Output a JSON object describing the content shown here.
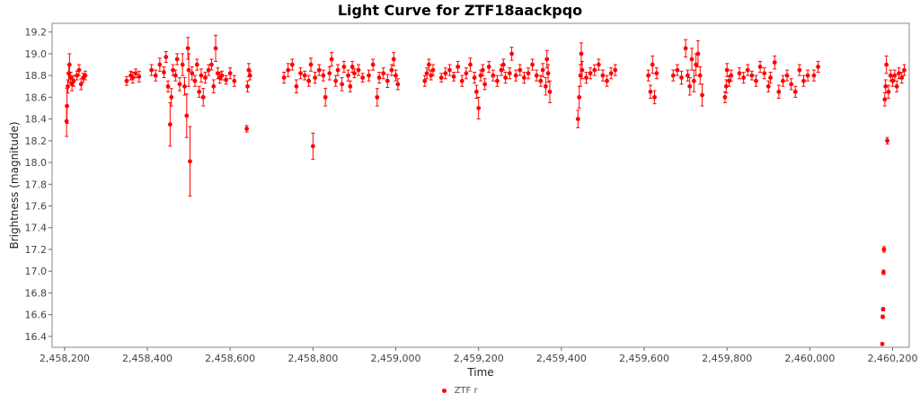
{
  "chart_data": {
    "type": "scatter",
    "title": "Light Curve for ZTF18aackpqo",
    "xlabel": "Time",
    "ylabel": "Brightness (magnitude)",
    "xlim": [
      2458170,
      2460240
    ],
    "ylim": [
      19.28,
      16.3
    ],
    "y_inverted": true,
    "grid": false,
    "legend_position": "bottom-center",
    "x_ticks": [
      2458200,
      2458400,
      2458600,
      2458800,
      2459000,
      2459200,
      2459400,
      2459600,
      2459800,
      2460000,
      2460200
    ],
    "x_tick_labels": [
      "2,458,200",
      "2,458,400",
      "2,458,600",
      "2,458,800",
      "2,459,000",
      "2,459,200",
      "2,459,400",
      "2,459,600",
      "2,459,800",
      "2,460,000",
      "2,460,200"
    ],
    "y_ticks": [
      16.4,
      16.6,
      16.8,
      17.0,
      17.2,
      17.4,
      17.6,
      17.8,
      18.0,
      18.2,
      18.4,
      18.6,
      18.8,
      19.0,
      19.2
    ],
    "y_tick_labels": [
      "16.4",
      "16.6",
      "16.8",
      "17.0",
      "17.2",
      "17.4",
      "17.6",
      "17.8",
      "18.0",
      "18.2",
      "18.4",
      "18.6",
      "18.8",
      "19.0",
      "19.2"
    ],
    "series": [
      {
        "name": "ZTF r",
        "color": "#ff0000",
        "points": [
          [
            2458205,
            18.38,
            0.14
          ],
          [
            2458206,
            18.52,
            0.16
          ],
          [
            2458208,
            18.7,
            0.06
          ],
          [
            2458210,
            18.82,
            0.08
          ],
          [
            2458212,
            18.9,
            0.1
          ],
          [
            2458215,
            18.78,
            0.05
          ],
          [
            2458218,
            18.72,
            0.06
          ],
          [
            2458222,
            18.75,
            0.05
          ],
          [
            2458230,
            18.8,
            0.04
          ],
          [
            2458235,
            18.85,
            0.05
          ],
          [
            2458240,
            18.72,
            0.05
          ],
          [
            2458245,
            18.78,
            0.04
          ],
          [
            2458250,
            18.8,
            0.04
          ],
          [
            2458350,
            18.75,
            0.04
          ],
          [
            2458360,
            18.8,
            0.04
          ],
          [
            2458365,
            18.78,
            0.05
          ],
          [
            2458372,
            18.82,
            0.04
          ],
          [
            2458380,
            18.79,
            0.05
          ],
          [
            2458410,
            18.85,
            0.05
          ],
          [
            2458420,
            18.8,
            0.05
          ],
          [
            2458430,
            18.9,
            0.06
          ],
          [
            2458440,
            18.83,
            0.05
          ],
          [
            2458445,
            18.97,
            0.05
          ],
          [
            2458450,
            18.7,
            0.05
          ],
          [
            2458455,
            18.35,
            0.2
          ],
          [
            2458458,
            18.6,
            0.08
          ],
          [
            2458462,
            18.85,
            0.05
          ],
          [
            2458468,
            18.8,
            0.05
          ],
          [
            2458472,
            18.95,
            0.05
          ],
          [
            2458478,
            18.72,
            0.06
          ],
          [
            2458485,
            18.9,
            0.1
          ],
          [
            2458490,
            18.7,
            0.08
          ],
          [
            2458495,
            18.43,
            0.2
          ],
          [
            2458498,
            19.05,
            0.1
          ],
          [
            2458500,
            18.85,
            0.15
          ],
          [
            2458503,
            18.01,
            0.32
          ],
          [
            2458508,
            18.82,
            0.06
          ],
          [
            2458515,
            18.75,
            0.05
          ],
          [
            2458520,
            18.9,
            0.05
          ],
          [
            2458525,
            18.65,
            0.05
          ],
          [
            2458530,
            18.8,
            0.06
          ],
          [
            2458535,
            18.6,
            0.08
          ],
          [
            2458540,
            18.78,
            0.05
          ],
          [
            2458548,
            18.85,
            0.05
          ],
          [
            2458555,
            18.9,
            0.05
          ],
          [
            2458560,
            18.7,
            0.06
          ],
          [
            2458565,
            19.05,
            0.12
          ],
          [
            2458570,
            18.82,
            0.05
          ],
          [
            2458575,
            18.78,
            0.05
          ],
          [
            2458580,
            18.8,
            0.04
          ],
          [
            2458590,
            18.76,
            0.04
          ],
          [
            2458600,
            18.82,
            0.05
          ],
          [
            2458610,
            18.75,
            0.05
          ],
          [
            2458640,
            18.31,
            0.03
          ],
          [
            2458642,
            18.7,
            0.05
          ],
          [
            2458645,
            18.85,
            0.06
          ],
          [
            2458648,
            18.8,
            0.04
          ],
          [
            2458730,
            18.78,
            0.05
          ],
          [
            2458740,
            18.85,
            0.06
          ],
          [
            2458750,
            18.9,
            0.05
          ],
          [
            2458760,
            18.7,
            0.06
          ],
          [
            2458770,
            18.82,
            0.05
          ],
          [
            2458780,
            18.8,
            0.04
          ],
          [
            2458790,
            18.75,
            0.05
          ],
          [
            2458795,
            18.9,
            0.06
          ],
          [
            2458800,
            18.15,
            0.12
          ],
          [
            2458805,
            18.78,
            0.05
          ],
          [
            2458815,
            18.85,
            0.05
          ],
          [
            2458825,
            18.8,
            0.05
          ],
          [
            2458830,
            18.6,
            0.08
          ],
          [
            2458840,
            18.82,
            0.06
          ],
          [
            2458845,
            18.95,
            0.06
          ],
          [
            2458855,
            18.75,
            0.05
          ],
          [
            2458860,
            18.85,
            0.05
          ],
          [
            2458870,
            18.72,
            0.06
          ],
          [
            2458875,
            18.88,
            0.05
          ],
          [
            2458885,
            18.8,
            0.05
          ],
          [
            2458890,
            18.7,
            0.05
          ],
          [
            2458895,
            18.88,
            0.05
          ],
          [
            2458900,
            18.82,
            0.04
          ],
          [
            2458910,
            18.85,
            0.05
          ],
          [
            2458920,
            18.78,
            0.04
          ],
          [
            2458935,
            18.8,
            0.05
          ],
          [
            2458945,
            18.9,
            0.05
          ],
          [
            2458955,
            18.6,
            0.08
          ],
          [
            2458960,
            18.78,
            0.05
          ],
          [
            2458970,
            18.82,
            0.05
          ],
          [
            2458980,
            18.75,
            0.06
          ],
          [
            2458990,
            18.85,
            0.05
          ],
          [
            2458995,
            18.95,
            0.06
          ],
          [
            2459000,
            18.8,
            0.05
          ],
          [
            2459005,
            18.72,
            0.05
          ],
          [
            2459070,
            18.75,
            0.05
          ],
          [
            2459075,
            18.82,
            0.05
          ],
          [
            2459080,
            18.9,
            0.05
          ],
          [
            2459085,
            18.8,
            0.04
          ],
          [
            2459090,
            18.85,
            0.05
          ],
          [
            2459110,
            18.78,
            0.04
          ],
          [
            2459120,
            18.82,
            0.05
          ],
          [
            2459130,
            18.85,
            0.05
          ],
          [
            2459140,
            18.79,
            0.04
          ],
          [
            2459150,
            18.88,
            0.05
          ],
          [
            2459160,
            18.75,
            0.05
          ],
          [
            2459170,
            18.82,
            0.05
          ],
          [
            2459180,
            18.9,
            0.06
          ],
          [
            2459190,
            18.78,
            0.05
          ],
          [
            2459195,
            18.65,
            0.06
          ],
          [
            2459200,
            18.5,
            0.1
          ],
          [
            2459205,
            18.8,
            0.05
          ],
          [
            2459210,
            18.85,
            0.05
          ],
          [
            2459215,
            18.72,
            0.05
          ],
          [
            2459225,
            18.88,
            0.05
          ],
          [
            2459235,
            18.8,
            0.05
          ],
          [
            2459245,
            18.75,
            0.05
          ],
          [
            2459255,
            18.85,
            0.05
          ],
          [
            2459260,
            18.9,
            0.05
          ],
          [
            2459265,
            18.78,
            0.05
          ],
          [
            2459275,
            18.82,
            0.05
          ],
          [
            2459280,
            19.0,
            0.06
          ],
          [
            2459290,
            18.8,
            0.05
          ],
          [
            2459300,
            18.85,
            0.05
          ],
          [
            2459310,
            18.78,
            0.05
          ],
          [
            2459320,
            18.82,
            0.05
          ],
          [
            2459330,
            18.9,
            0.05
          ],
          [
            2459340,
            18.8,
            0.05
          ],
          [
            2459350,
            18.75,
            0.05
          ],
          [
            2459355,
            18.85,
            0.06
          ],
          [
            2459362,
            18.7,
            0.08
          ],
          [
            2459365,
            18.95,
            0.08
          ],
          [
            2459368,
            18.82,
            0.08
          ],
          [
            2459372,
            18.65,
            0.1
          ],
          [
            2459440,
            18.4,
            0.08
          ],
          [
            2459443,
            18.6,
            0.1
          ],
          [
            2459446,
            18.8,
            0.1
          ],
          [
            2459448,
            19.0,
            0.1
          ],
          [
            2459450,
            18.85,
            0.08
          ],
          [
            2459460,
            18.78,
            0.05
          ],
          [
            2459470,
            18.82,
            0.05
          ],
          [
            2459480,
            18.85,
            0.05
          ],
          [
            2459490,
            18.9,
            0.05
          ],
          [
            2459500,
            18.8,
            0.05
          ],
          [
            2459510,
            18.75,
            0.05
          ],
          [
            2459520,
            18.82,
            0.05
          ],
          [
            2459530,
            18.85,
            0.05
          ],
          [
            2459610,
            18.8,
            0.05
          ],
          [
            2459615,
            18.65,
            0.06
          ],
          [
            2459620,
            18.9,
            0.08
          ],
          [
            2459625,
            18.6,
            0.06
          ],
          [
            2459630,
            18.82,
            0.05
          ],
          [
            2459670,
            18.8,
            0.05
          ],
          [
            2459680,
            18.85,
            0.05
          ],
          [
            2459690,
            18.78,
            0.06
          ],
          [
            2459700,
            19.05,
            0.08
          ],
          [
            2459705,
            18.8,
            0.05
          ],
          [
            2459710,
            18.7,
            0.08
          ],
          [
            2459715,
            18.95,
            0.1
          ],
          [
            2459720,
            18.75,
            0.1
          ],
          [
            2459725,
            18.9,
            0.1
          ],
          [
            2459730,
            19.0,
            0.12
          ],
          [
            2459735,
            18.8,
            0.08
          ],
          [
            2459740,
            18.62,
            0.1
          ],
          [
            2459795,
            18.6,
            0.05
          ],
          [
            2459798,
            18.7,
            0.06
          ],
          [
            2459800,
            18.85,
            0.06
          ],
          [
            2459805,
            18.75,
            0.05
          ],
          [
            2459810,
            18.8,
            0.05
          ],
          [
            2459830,
            18.82,
            0.05
          ],
          [
            2459840,
            18.78,
            0.05
          ],
          [
            2459850,
            18.85,
            0.05
          ],
          [
            2459860,
            18.8,
            0.04
          ],
          [
            2459870,
            18.75,
            0.05
          ],
          [
            2459880,
            18.88,
            0.05
          ],
          [
            2459890,
            18.82,
            0.05
          ],
          [
            2459900,
            18.7,
            0.05
          ],
          [
            2459905,
            18.78,
            0.05
          ],
          [
            2459915,
            18.92,
            0.06
          ],
          [
            2459925,
            18.65,
            0.06
          ],
          [
            2459935,
            18.75,
            0.05
          ],
          [
            2459945,
            18.8,
            0.05
          ],
          [
            2459955,
            18.72,
            0.05
          ],
          [
            2459965,
            18.65,
            0.05
          ],
          [
            2459975,
            18.85,
            0.05
          ],
          [
            2459985,
            18.75,
            0.05
          ],
          [
            2459995,
            18.8,
            0.05
          ],
          [
            2460010,
            18.8,
            0.05
          ],
          [
            2460020,
            18.88,
            0.05
          ],
          [
            2460175,
            16.33,
            0.01
          ],
          [
            2460176,
            16.58,
            0.015
          ],
          [
            2460177,
            16.65,
            0.015
          ],
          [
            2460178,
            16.99,
            0.02
          ],
          [
            2460179,
            17.2,
            0.025
          ],
          [
            2460181,
            18.58,
            0.06
          ],
          [
            2460183,
            18.7,
            0.06
          ],
          [
            2460185,
            18.9,
            0.08
          ],
          [
            2460187,
            18.2,
            0.03
          ],
          [
            2460190,
            18.65,
            0.06
          ],
          [
            2460195,
            18.8,
            0.05
          ],
          [
            2460200,
            18.75,
            0.05
          ],
          [
            2460205,
            18.8,
            0.05
          ],
          [
            2460210,
            18.7,
            0.05
          ],
          [
            2460215,
            18.82,
            0.05
          ],
          [
            2460222,
            18.78,
            0.05
          ],
          [
            2460228,
            18.85,
            0.05
          ]
        ]
      }
    ]
  }
}
